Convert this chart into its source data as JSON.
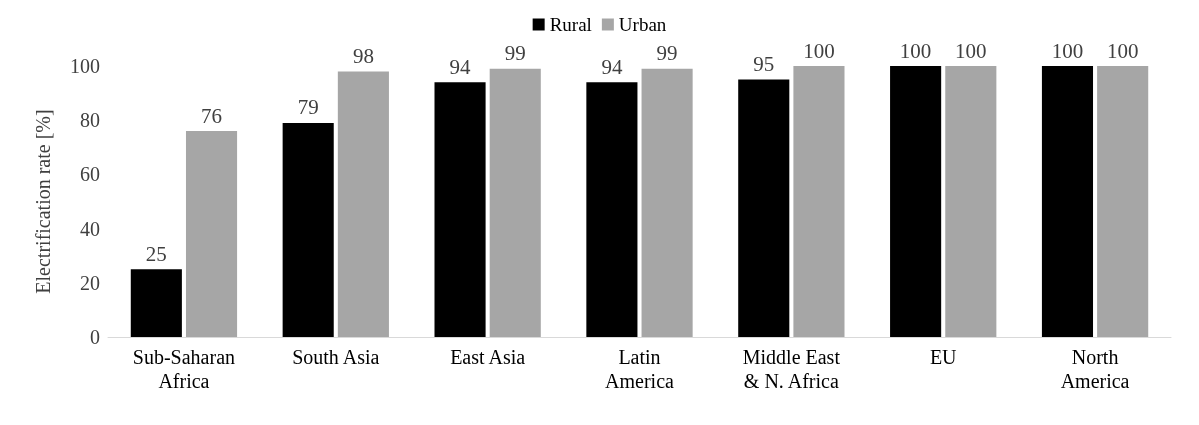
{
  "chart_data": {
    "type": "bar",
    "ylabel": "Electrification rate [%]",
    "categories": [
      "Sub-Saharan\nAfrica",
      "South Asia",
      "East Asia",
      "Latin\nAmerica",
      "Middle East\n& N. Africa",
      "EU",
      "North\nAmerica"
    ],
    "series": [
      {
        "name": "Rural",
        "color": "#000000",
        "values": [
          25,
          79,
          94,
          94,
          95,
          100,
          100
        ]
      },
      {
        "name": "Urban",
        "color": "#a6a6a6",
        "values": [
          76,
          98,
          99,
          99,
          100,
          100,
          100
        ]
      }
    ],
    "ylim": [
      0,
      100
    ],
    "yticks": [
      0,
      20,
      40,
      60,
      80,
      100
    ],
    "grid": false,
    "legend": "top",
    "data_labels": true
  }
}
